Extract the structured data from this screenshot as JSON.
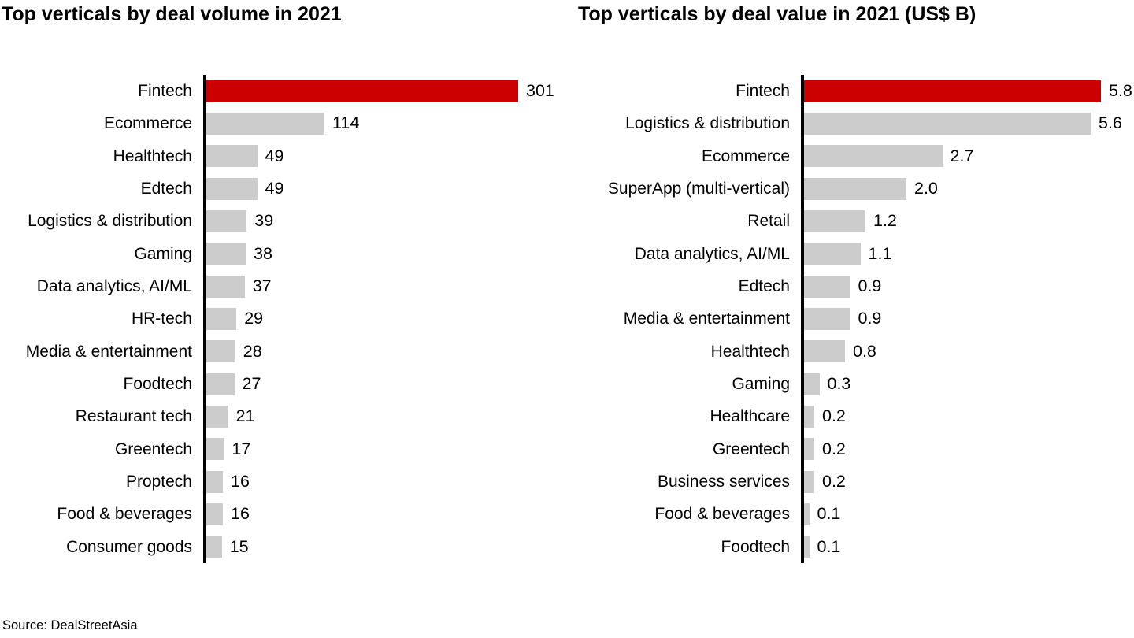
{
  "page": {
    "source": "Source: DealStreetAsia"
  },
  "colors": {
    "highlight": "#cc0000",
    "bar": "#cccccc",
    "axis": "#000000",
    "text": "#000000",
    "background": "#ffffff"
  },
  "chart_data": [
    {
      "type": "bar",
      "orientation": "horizontal",
      "title": "Top verticals by deal volume in 2021",
      "xlabel": "",
      "ylabel": "",
      "xlim": [
        0,
        301
      ],
      "grid": false,
      "legend": "none",
      "highlight_index": 0,
      "categories": [
        "Fintech",
        "Ecommerce",
        "Healthtech",
        "Edtech",
        "Logistics & distribution",
        "Gaming",
        "Data analytics, AI/ML",
        "HR-tech",
        "Media & entertainment",
        "Foodtech",
        "Restaurant tech",
        "Greentech",
        "Proptech",
        "Food & beverages",
        "Consumer goods"
      ],
      "values": [
        301,
        114,
        49,
        49,
        39,
        38,
        37,
        29,
        28,
        27,
        21,
        17,
        16,
        16,
        15
      ],
      "value_labels": [
        "301",
        "114",
        "49",
        "49",
        "39",
        "38",
        "37",
        "29",
        "28",
        "27",
        "21",
        "17",
        "16",
        "16",
        "15"
      ]
    },
    {
      "type": "bar",
      "orientation": "horizontal",
      "title": "Top verticals by deal value in 2021 (US$ B)",
      "xlabel": "",
      "ylabel": "",
      "xlim": [
        0,
        5.8
      ],
      "grid": false,
      "legend": "none",
      "highlight_index": 0,
      "categories": [
        "Fintech",
        "Logistics & distribution",
        "Ecommerce",
        "SuperApp (multi-vertical)",
        "Retail",
        "Data analytics, AI/ML",
        "Edtech",
        "Media & entertainment",
        "Healthtech",
        "Gaming",
        "Healthcare",
        "Greentech",
        "Business services",
        "Food & beverages",
        "Foodtech"
      ],
      "values": [
        5.8,
        5.6,
        2.7,
        2.0,
        1.2,
        1.1,
        0.9,
        0.9,
        0.8,
        0.3,
        0.2,
        0.2,
        0.2,
        0.1,
        0.1
      ],
      "value_labels": [
        "5.8",
        "5.6",
        "2.7",
        "2.0",
        "1.2",
        "1.1",
        "0.9",
        "0.9",
        "0.8",
        "0.3",
        "0.2",
        "0.2",
        "0.2",
        "0.1",
        "0.1"
      ]
    }
  ]
}
